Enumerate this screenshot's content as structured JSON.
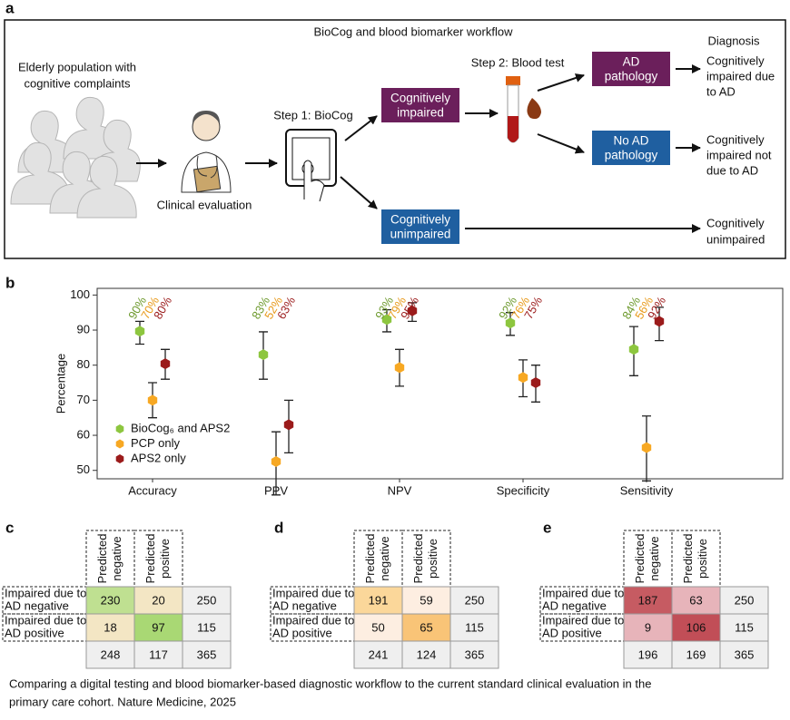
{
  "panel_labels": [
    "a",
    "b",
    "c",
    "d",
    "e"
  ],
  "workflow": {
    "title": "BioCog and blood biomarker workflow",
    "population": [
      "Elderly population with",
      "cognitive complaints"
    ],
    "clinical": "Clinical evaluation",
    "step1": "Step 1: BioCog",
    "step2": "Step 2: Blood test",
    "impaired": [
      "Cognitively",
      "impaired"
    ],
    "unimpaired": [
      "Cognitively",
      "unimpaired"
    ],
    "ad": [
      "AD",
      "pathology"
    ],
    "noad": [
      "No AD",
      "pathology"
    ],
    "diagnosis_header": "Diagnosis",
    "outcomes": [
      [
        "Cognitively",
        "impaired due",
        "to AD"
      ],
      [
        "Cognitively",
        "impaired not",
        "due to AD"
      ],
      [
        "Cognitively",
        "unimpaired"
      ]
    ]
  },
  "chart_data": {
    "type": "errorbar",
    "ylabel": "Percentage",
    "categories": [
      "Accuracy",
      "PPV",
      "NPV",
      "Specificity",
      "Sensitivity"
    ],
    "series": [
      {
        "name": "BioCog₆ and APS2",
        "color": "#8dc63f",
        "label_color": "#6e9a2e",
        "values": [
          89.7,
          83,
          93,
          92,
          84.5
        ],
        "ci_low": [
          86,
          76,
          89.5,
          88.5,
          77
        ],
        "ci_high": [
          92.5,
          89.5,
          95.8,
          95,
          91
        ],
        "value_labels": [
          "90%",
          "83%",
          "93%",
          "92%",
          "84%"
        ]
      },
      {
        "name": "PCP only",
        "color": "#f7a823",
        "label_color": "#e89a1a",
        "values": [
          70,
          52.5,
          79.3,
          76.5,
          56.5
        ],
        "ci_low": [
          65,
          43,
          74,
          71,
          47
        ],
        "ci_high": [
          75,
          61,
          84.5,
          81.5,
          65.5
        ],
        "value_labels": [
          "70%",
          "52%",
          "79%",
          "76%",
          "56%"
        ]
      },
      {
        "name": "APS2 only",
        "color": "#9b1b1b",
        "label_color": "#9b1b1b",
        "values": [
          80.4,
          63,
          95.5,
          75,
          92.5
        ],
        "ci_low": [
          76,
          55,
          92.5,
          69.5,
          87
        ],
        "ci_high": [
          84.5,
          70,
          97.8,
          80,
          96.5
        ],
        "value_labels": [
          "80%",
          "63%",
          "95%",
          "75%",
          "92%"
        ]
      }
    ],
    "ylim": [
      47.6,
      101.9
    ],
    "yticks": [
      50,
      60,
      70,
      80,
      90,
      100
    ],
    "legend": "lower left"
  },
  "tables": [
    {
      "col_headers": [
        [
          "Predicted",
          "negative"
        ],
        [
          "Predicted",
          "positive"
        ]
      ],
      "row_headers": [
        [
          "Impaired due to",
          "AD negative"
        ],
        [
          "Impaired due to",
          "AD positive"
        ]
      ],
      "rows": [
        [
          230,
          20,
          250
        ],
        [
          18,
          97,
          115
        ],
        [
          248,
          117,
          365
        ]
      ],
      "colors": [
        [
          "#bfe091",
          "#f3e6c4"
        ],
        [
          "#f3e6c4",
          "#a9d874"
        ]
      ]
    },
    {
      "col_headers": [
        [
          "Predicted",
          "negative"
        ],
        [
          "Predicted",
          "positive"
        ]
      ],
      "row_headers": [
        [
          "Impaired due to",
          "AD negative"
        ],
        [
          "Impaired due to",
          "AD positive"
        ]
      ],
      "rows": [
        [
          191,
          59,
          250
        ],
        [
          50,
          65,
          115
        ],
        [
          241,
          124,
          365
        ]
      ],
      "colors": [
        [
          "#fbd79a",
          "#fdeee1"
        ],
        [
          "#fdeee1",
          "#f9c477"
        ]
      ]
    },
    {
      "col_headers": [
        [
          "Predicted",
          "negative"
        ],
        [
          "Predicted",
          "positive"
        ]
      ],
      "row_headers": [
        [
          "Impaired due to",
          "AD negative"
        ],
        [
          "Impaired due to",
          "AD positive"
        ]
      ],
      "rows": [
        [
          187,
          63,
          250
        ],
        [
          9,
          106,
          115
        ],
        [
          196,
          169,
          365
        ]
      ],
      "colors": [
        [
          "#c65b62",
          "#e7b4ba"
        ],
        [
          "#e7b4ba",
          "#c14e57"
        ]
      ]
    }
  ],
  "caption": [
    "Comparing a digital testing and blood biomarker-based diagnostic workflow to the current standard clinical evaluation in the",
    "primary care cohort. Nature Medicine, 2025"
  ]
}
